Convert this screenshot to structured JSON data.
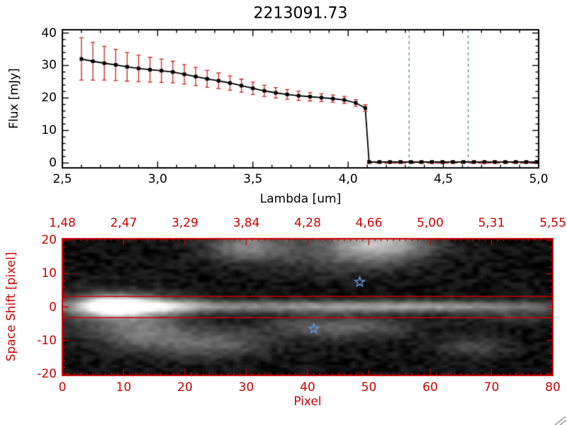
{
  "title": "2213091.73",
  "colors": {
    "axis": "#000000",
    "red": "#cc0000",
    "error_bar": "#cc2222",
    "vline": "#4d8ba0",
    "star": "#5b8fd9",
    "background": "#ffffff"
  },
  "chart_data": [
    {
      "type": "line",
      "title": "2213091.73",
      "xlabel": "Lambda [um]",
      "ylabel": "Flux [mJy]",
      "xlim": [
        2.5,
        5.0
      ],
      "ylim": [
        0,
        40
      ],
      "xtick_values": [
        2.5,
        3.0,
        3.5,
        4.0,
        4.5,
        5.0
      ],
      "xtick_labels": [
        "2,5",
        "3,0",
        "3,5",
        "4,0",
        "4,5",
        "5,0"
      ],
      "ytick_values": [
        0,
        10,
        20,
        30,
        40
      ],
      "ytick_labels": [
        "0",
        "10",
        "20",
        "30",
        "40"
      ],
      "marker": "filled-square",
      "line_color": "#000000",
      "x": [
        2.6,
        2.66,
        2.72,
        2.78,
        2.84,
        2.9,
        2.96,
        3.02,
        3.08,
        3.14,
        3.2,
        3.26,
        3.32,
        3.38,
        3.44,
        3.5,
        3.56,
        3.62,
        3.68,
        3.74,
        3.8,
        3.86,
        3.92,
        3.98,
        4.04,
        4.09,
        4.11,
        4.165,
        4.22,
        4.275,
        4.33,
        4.385,
        4.44,
        4.495,
        4.55,
        4.605,
        4.66,
        4.715,
        4.77,
        4.825,
        4.88,
        4.935,
        4.99
      ],
      "y": [
        32.0,
        31.3,
        30.7,
        30.2,
        29.6,
        29.1,
        28.7,
        28.4,
        28.0,
        27.3,
        26.6,
        25.9,
        25.3,
        24.6,
        23.8,
        23.0,
        22.2,
        21.6,
        21.1,
        20.7,
        20.4,
        20.1,
        19.8,
        19.4,
        18.5,
        16.9,
        0.3,
        0.3,
        0.3,
        0.3,
        0.3,
        0.3,
        0.3,
        0.3,
        0.3,
        0.3,
        0.3,
        0.3,
        0.3,
        0.3,
        0.3,
        0.3,
        0.3
      ],
      "yerr": [
        6.5,
        5.8,
        5.2,
        4.8,
        4.4,
        4.1,
        3.8,
        3.6,
        3.3,
        3.0,
        2.8,
        2.6,
        2.4,
        2.2,
        2.0,
        1.9,
        1.7,
        1.6,
        1.5,
        1.4,
        1.3,
        1.2,
        1.1,
        1.1,
        1.0,
        1.0,
        0.4,
        0.4,
        0.4,
        0.4,
        0.4,
        0.4,
        0.4,
        0.4,
        0.4,
        0.4,
        0.4,
        0.4,
        0.4,
        0.4,
        0.4,
        0.4,
        0.4
      ],
      "vlines": [
        4.32,
        4.63
      ],
      "vline_style": "dashed",
      "zero_line": {
        "y": 0,
        "from_x": 4.1,
        "to_x": 5.0,
        "style": "dashed",
        "color": "#cc0000"
      }
    },
    {
      "type": "heatmap",
      "xlabel": "Pixel",
      "ylabel": "Space Shift [pixel]",
      "xlim": [
        0,
        80
      ],
      "ylim": [
        -20,
        20
      ],
      "xtick_values": [
        0,
        10,
        20,
        30,
        40,
        50,
        60,
        70,
        80
      ],
      "xtick_labels": [
        "0",
        "10",
        "20",
        "30",
        "40",
        "50",
        "60",
        "70",
        "80"
      ],
      "ytick_values": [
        20,
        10,
        0,
        -10,
        -20
      ],
      "ytick_labels": [
        "20",
        "10",
        "0",
        "-10",
        "-20"
      ],
      "top_axis_labels": [
        "1,48",
        "2,47",
        "3,29",
        "3,84",
        "4,28",
        "4,66",
        "5,00",
        "5,31",
        "5,55"
      ],
      "axis_color": "#cc0000",
      "aperture_lines_y": [
        3.2,
        -3.2
      ],
      "stars": [
        {
          "x": 48.5,
          "y": 7.5
        },
        {
          "x": 41,
          "y": -6.5
        }
      ],
      "blobs": [
        {
          "x": 8,
          "y": 0.3,
          "sx": 3.5,
          "sy": 2.0,
          "a": 1.05
        },
        {
          "x": 15,
          "y": 0.3,
          "sx": 5,
          "sy": 1.6,
          "a": 0.55
        },
        {
          "x": 35,
          "y": 0.2,
          "sx": 28,
          "sy": 1.25,
          "a": 0.38
        },
        {
          "x": 62,
          "y": 0.2,
          "sx": 18,
          "sy": 1.15,
          "a": 0.28
        },
        {
          "x": 9,
          "y": -1.5,
          "sx": 7,
          "sy": 4.5,
          "a": 0.28
        },
        {
          "x": 30,
          "y": 18.5,
          "sx": 4.5,
          "sy": 3.0,
          "a": 0.42
        },
        {
          "x": 52,
          "y": 19.5,
          "sx": 5.5,
          "sy": 3.5,
          "a": 0.6
        },
        {
          "x": 45,
          "y": 16,
          "sx": 8,
          "sy": 4,
          "a": 0.2
        },
        {
          "x": 24,
          "y": -11,
          "sx": 6.5,
          "sy": 3,
          "a": 0.3
        },
        {
          "x": 13,
          "y": -8,
          "sx": 5,
          "sy": 3.5,
          "a": 0.28
        },
        {
          "x": 45,
          "y": -6,
          "sx": 8,
          "sy": 2.6,
          "a": 0.3
        },
        {
          "x": 67,
          "y": -12,
          "sx": 4,
          "sy": 2,
          "a": 0.2
        },
        {
          "x": 74,
          "y": -3,
          "sx": 6,
          "sy": 1.5,
          "a": 0.15
        }
      ]
    }
  ]
}
